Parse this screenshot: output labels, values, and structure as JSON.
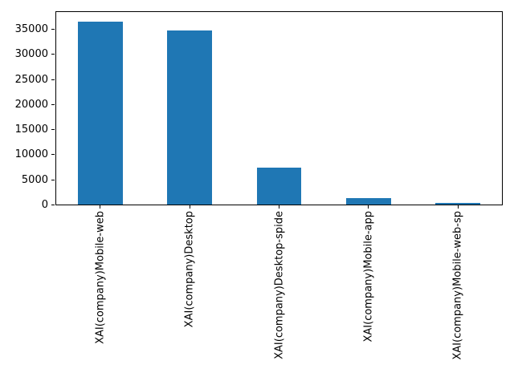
{
  "chart_data": {
    "type": "bar",
    "title": "",
    "xlabel": "",
    "ylabel": "",
    "categories": [
      "XAI(company)Mobile-web",
      "XAI(company)Desktop",
      "XAI(company)Desktop-spide",
      "XAI(company)Mobile-app",
      "XAI(company)Mobile-web-sp"
    ],
    "values": [
      36500,
      34650,
      7300,
      1250,
      350
    ],
    "yticks": [
      0,
      5000,
      10000,
      15000,
      20000,
      25000,
      30000,
      35000
    ],
    "ylim": [
      0,
      38700
    ],
    "bar_color": "#1f77b4",
    "axis_color": "#000000",
    "text_color": "#000000",
    "background_color": "#ffffff",
    "grid": false,
    "legend": false,
    "bar_width_fraction": 0.5,
    "x_label_rotation_deg": 90
  }
}
